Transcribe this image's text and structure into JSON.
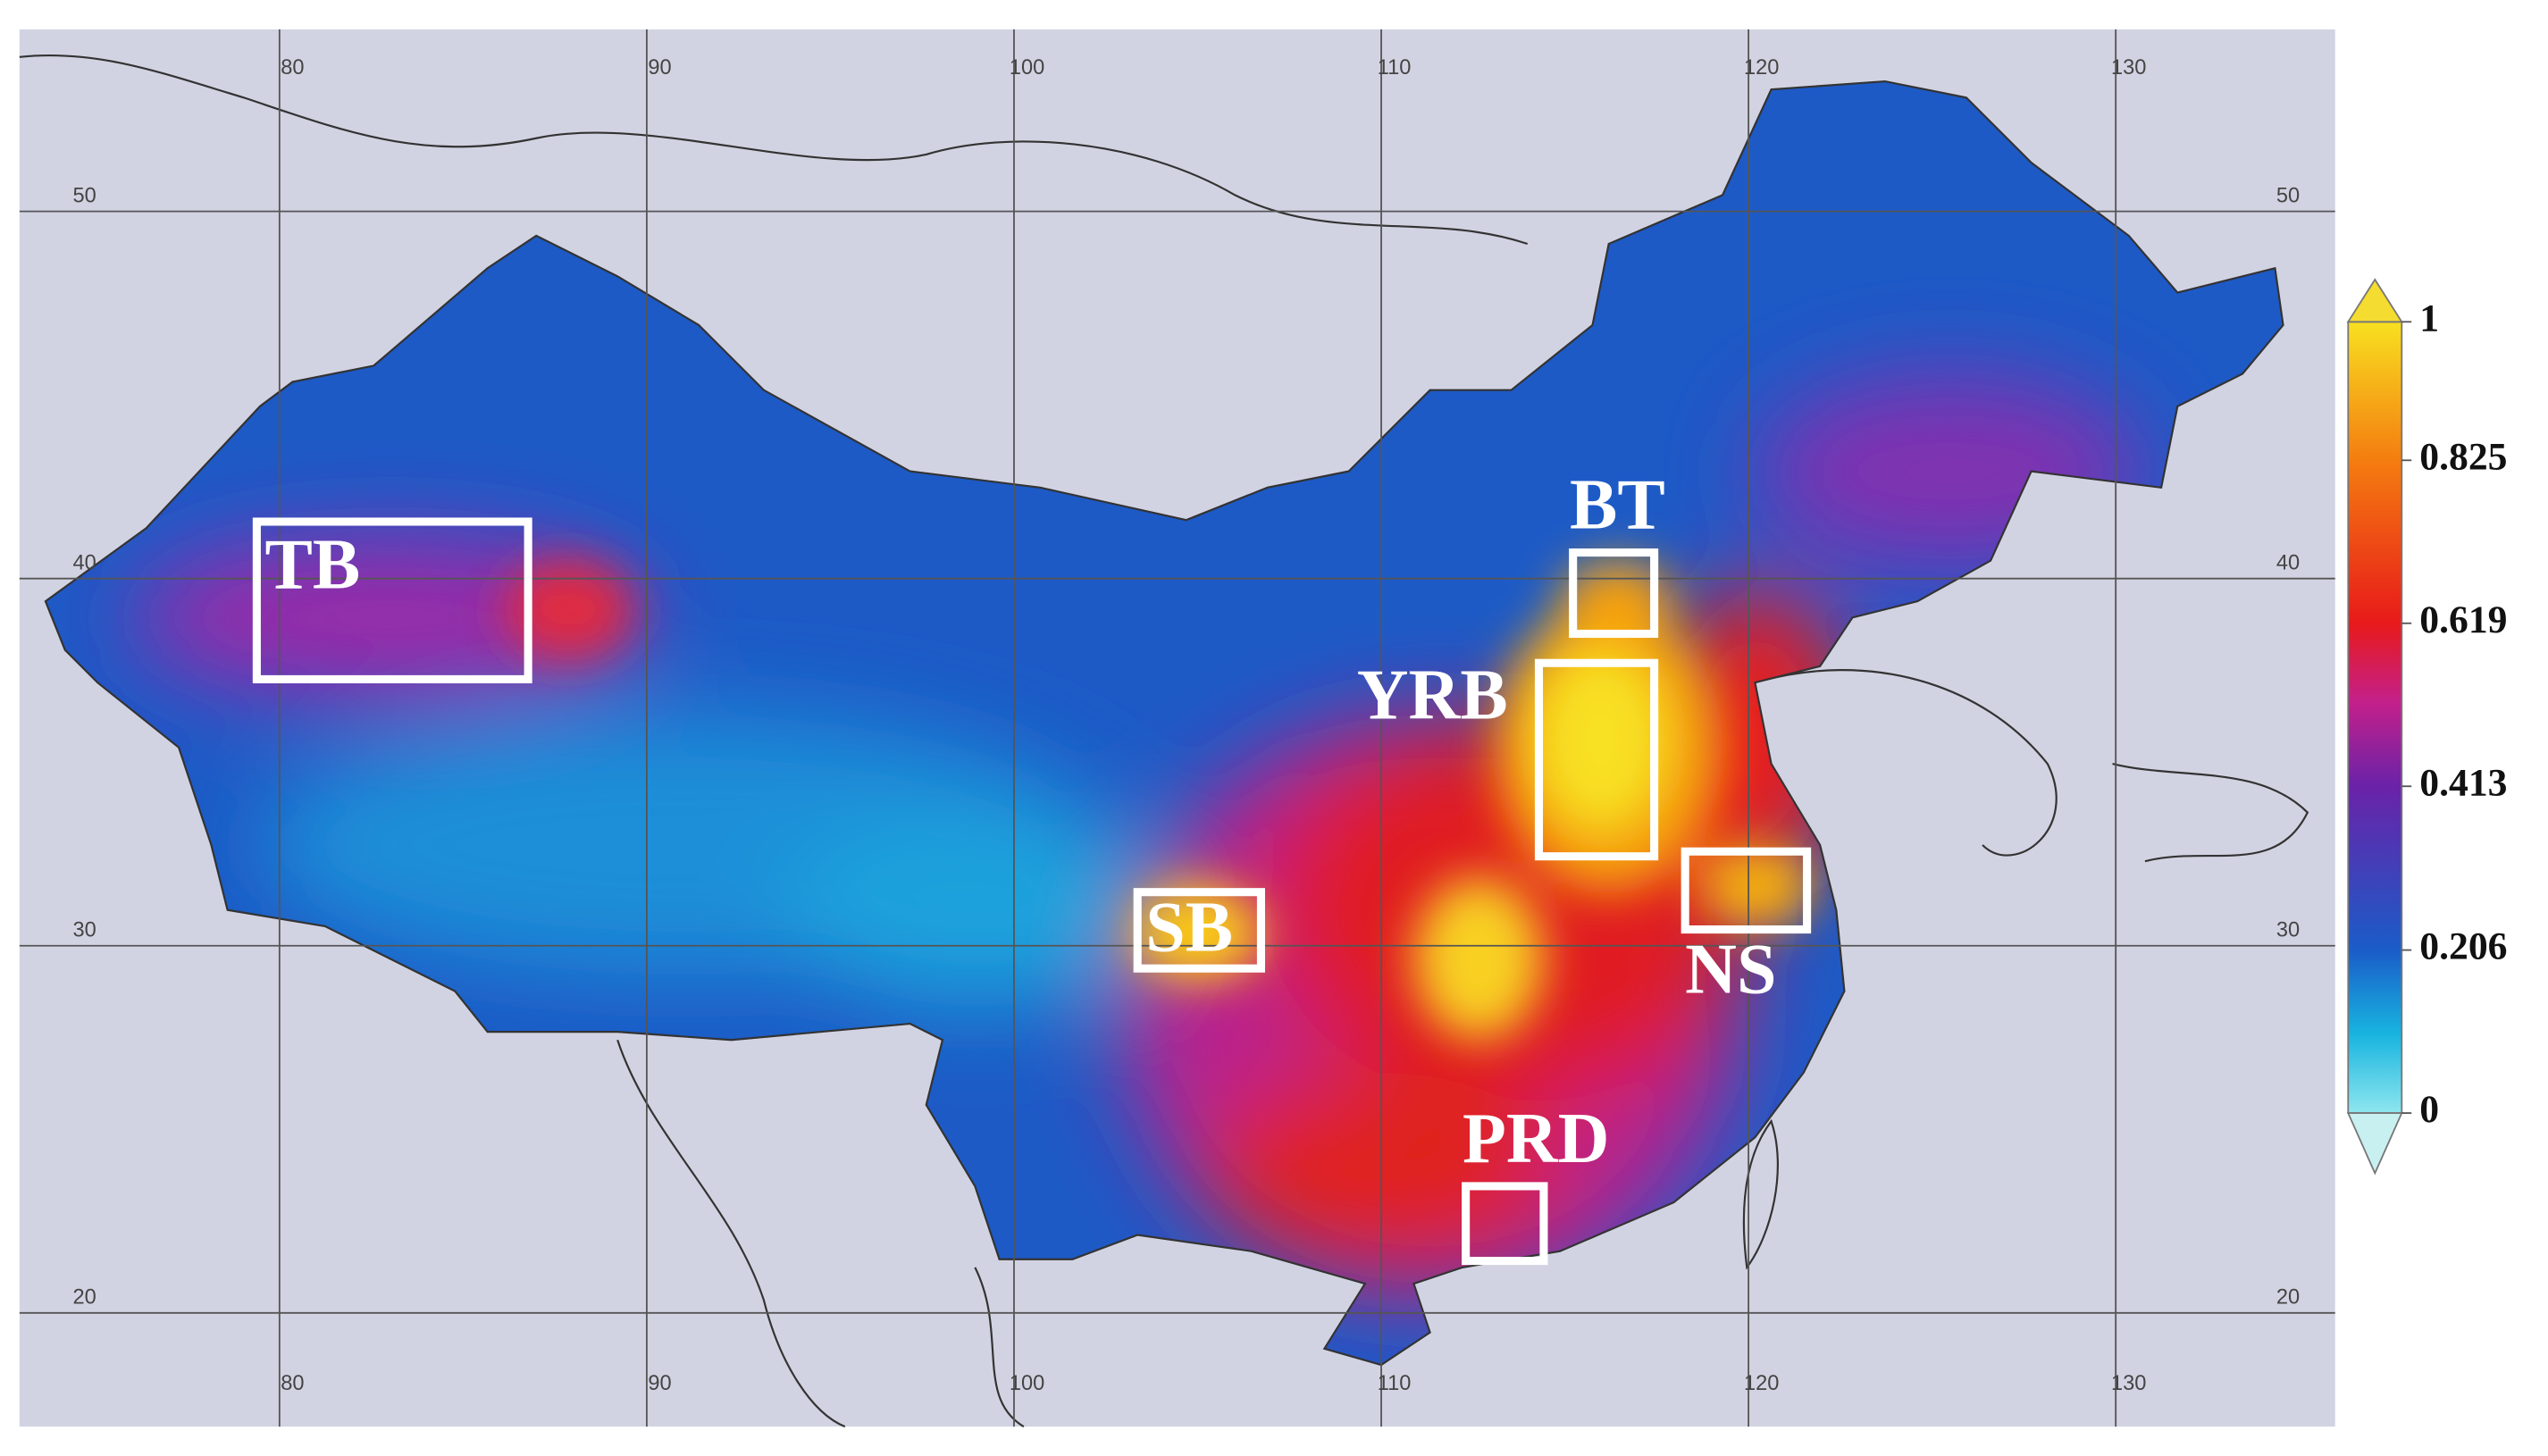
{
  "map": {
    "lon_ticks": [
      80,
      90,
      100,
      110,
      120,
      130
    ],
    "lat_ticks": [
      50,
      40,
      30,
      20
    ],
    "regions": [
      {
        "label": "TB"
      },
      {
        "label": "BT"
      },
      {
        "label": "YRB"
      },
      {
        "label": "SB"
      },
      {
        "label": "NS"
      },
      {
        "label": "PRD"
      }
    ],
    "colorbar": {
      "range": [
        0,
        1
      ],
      "ticks": [
        0,
        0.206,
        0.413,
        0.619,
        0.825,
        1
      ]
    }
  }
}
